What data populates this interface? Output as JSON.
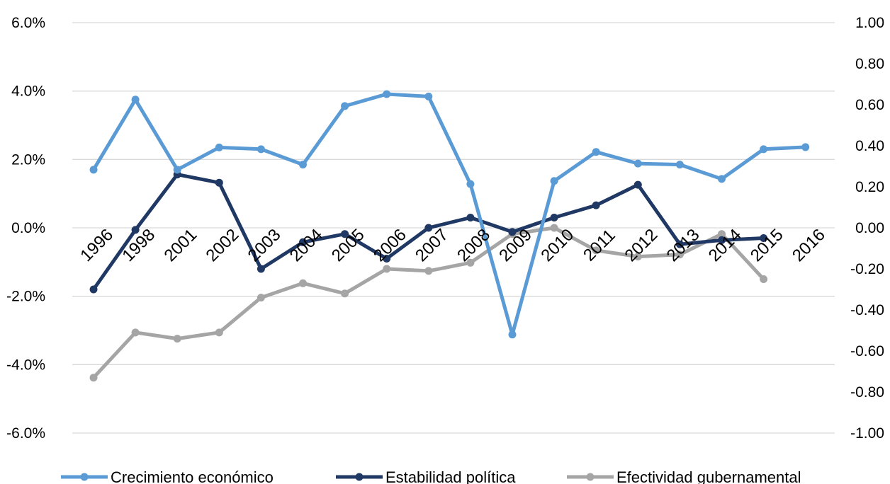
{
  "chart_data": {
    "type": "line",
    "title": "",
    "categories": [
      "1996",
      "1998",
      "2001",
      "2002",
      "2003",
      "2004",
      "2005",
      "2006",
      "2007",
      "2008",
      "2009",
      "2010",
      "2011",
      "2012",
      "2013",
      "2014",
      "2015",
      "2016"
    ],
    "y_left": {
      "min": -0.06,
      "max": 0.06,
      "step": 0.02,
      "tick_labels": [
        "6.0%",
        "4.0%",
        "2.0%",
        "0.0%",
        "-2.0%",
        "-4.0%",
        "-6.0%"
      ]
    },
    "y_right": {
      "min": -1.0,
      "max": 1.0,
      "step": 0.2,
      "tick_labels": [
        "1.00",
        "0.80",
        "0.60",
        "0.40",
        "0.20",
        "0.00",
        "-0.20",
        "-0.40",
        "-0.60",
        "-0.80",
        "-1.00"
      ]
    },
    "grid": true,
    "legend_position": "bottom",
    "series": [
      {
        "name": "Crecimiento económico",
        "axis": "left",
        "color": "#5B9BD5",
        "values": [
          0.017,
          0.0375,
          0.017,
          0.0235,
          0.023,
          0.0185,
          0.0356,
          0.0391,
          0.0384,
          0.0128,
          -0.0312,
          0.0137,
          0.0222,
          0.0188,
          0.0185,
          0.0143,
          0.023,
          0.0236
        ]
      },
      {
        "name": "Estabilidad política",
        "axis": "right",
        "color": "#203864",
        "values": [
          -0.3,
          -0.01,
          0.26,
          0.22,
          -0.2,
          -0.07,
          -0.03,
          -0.15,
          0.0,
          0.05,
          -0.02,
          0.05,
          0.11,
          0.21,
          -0.08,
          -0.06,
          -0.05,
          null
        ]
      },
      {
        "name": "Efectividad gubernamental",
        "axis": "right",
        "color": "#A5A5A5",
        "values": [
          -0.73,
          -0.51,
          -0.54,
          -0.51,
          -0.34,
          -0.27,
          -0.32,
          -0.2,
          -0.21,
          -0.17,
          -0.03,
          0.0,
          -0.11,
          -0.14,
          -0.13,
          -0.03,
          -0.25,
          null
        ]
      }
    ]
  }
}
